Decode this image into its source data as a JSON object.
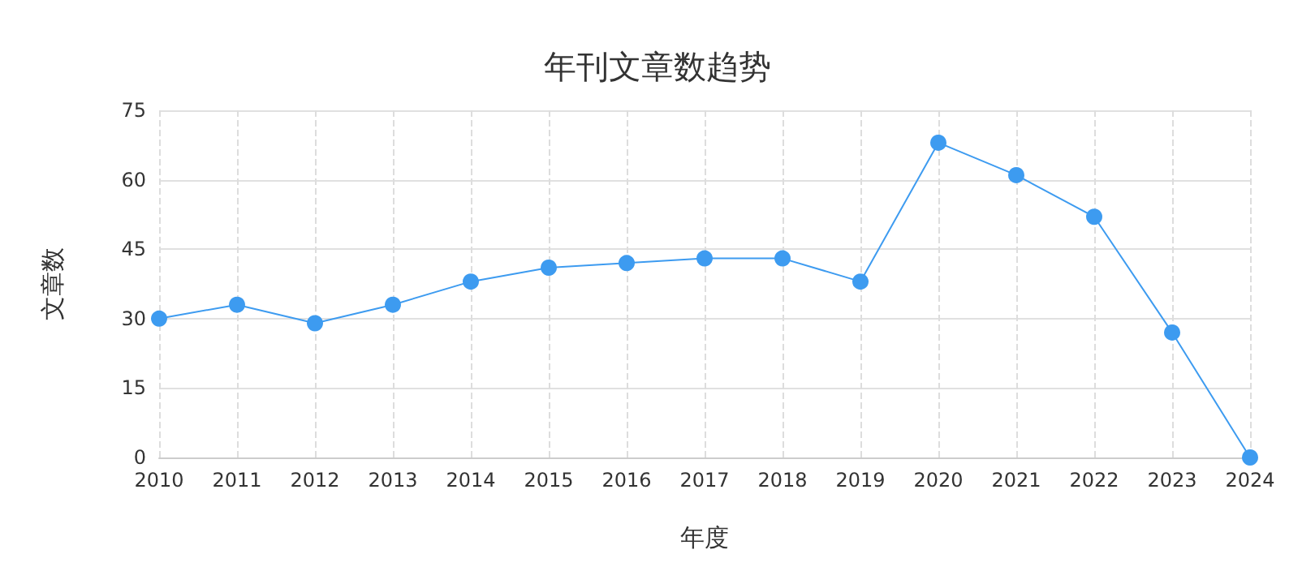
{
  "chart_data": {
    "type": "line",
    "title": "年刊文章数趋势",
    "xlabel": "年度",
    "ylabel": "文章数",
    "categories": [
      "2010",
      "2011",
      "2012",
      "2013",
      "2014",
      "2015",
      "2016",
      "2017",
      "2018",
      "2019",
      "2020",
      "2021",
      "2022",
      "2023",
      "2024"
    ],
    "series": [
      {
        "color": "#3d9bf0",
        "values": [
          30,
          33,
          29,
          33,
          38,
          41,
          42,
          43,
          43,
          38,
          68,
          61,
          52,
          27,
          0
        ]
      }
    ],
    "ylim": [
      0,
      75
    ],
    "yticks": [
      0,
      15,
      30,
      45,
      60,
      75
    ],
    "grid": true,
    "marker": "circle",
    "line_style": "solid"
  }
}
